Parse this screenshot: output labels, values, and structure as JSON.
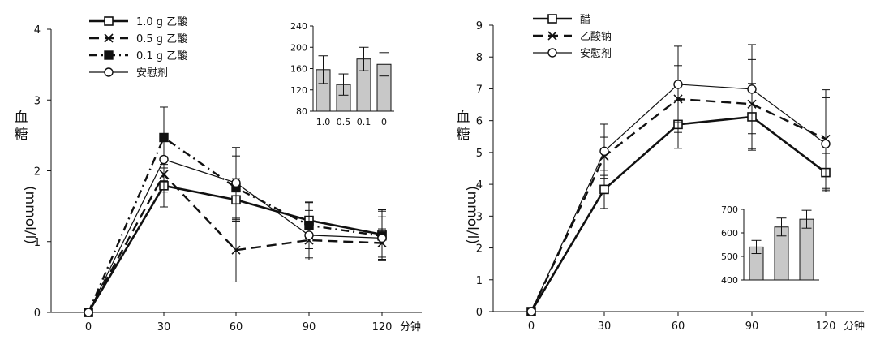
{
  "chart_data": [
    {
      "id": "left",
      "type": "line",
      "xlabel": "分钟",
      "ylabel_top": "血糖",
      "ylabel_unit": "(mmol/l)",
      "x": [
        0,
        30,
        60,
        90,
        120
      ],
      "x_tick_labels": [
        "0",
        "30",
        "60",
        "90",
        "120"
      ],
      "ylim": [
        0,
        4
      ],
      "y_ticks": [
        0,
        1,
        2,
        3,
        4
      ],
      "series": [
        {
          "name": "1.0 g  乙酸",
          "values": [
            0.0,
            1.79,
            1.59,
            1.3,
            1.1
          ],
          "errors": [
            0,
            0.3,
            0.3,
            0.25,
            0.35
          ],
          "style": "solid-bold",
          "marker": "open-square"
        },
        {
          "name": "0.5 g  乙酸",
          "values": [
            0.0,
            1.95,
            0.88,
            1.02,
            0.98
          ],
          "errors": [
            0,
            0.25,
            0.45,
            0.25,
            0.2
          ],
          "style": "long-dash",
          "marker": "x"
        },
        {
          "name": "0.1 g  乙酸",
          "values": [
            0.0,
            2.47,
            1.76,
            1.23,
            1.08
          ],
          "errors": [
            0,
            0.43,
            0.45,
            0.33,
            0.35
          ],
          "style": "dash-dot",
          "marker": "filled-square"
        },
        {
          "name": "安慰剂",
          "values": [
            0.0,
            2.16,
            1.83,
            1.09,
            1.05
          ],
          "errors": [
            0,
            0.3,
            0.5,
            0.35,
            0.3
          ],
          "style": "thin-solid",
          "marker": "open-circle"
        }
      ],
      "inset": {
        "type": "bar",
        "categories": [
          "1.0",
          "0.5",
          "0.1",
          "0"
        ],
        "values": [
          158,
          130,
          178,
          168
        ],
        "errors": [
          26,
          20,
          22,
          22
        ],
        "ylim": [
          80,
          240
        ],
        "y_ticks": [
          80,
          120,
          160,
          200,
          240
        ]
      }
    },
    {
      "id": "right",
      "type": "line",
      "xlabel": "分钟",
      "ylabel_top": "血糖",
      "ylabel_unit": "(mmol/l)",
      "x": [
        0,
        30,
        60,
        90,
        120
      ],
      "x_tick_labels": [
        "0",
        "30",
        "60",
        "90",
        "120"
      ],
      "ylim": [
        0,
        9
      ],
      "y_ticks": [
        0,
        1,
        2,
        3,
        4,
        5,
        6,
        7,
        8,
        9
      ],
      "series": [
        {
          "name": "醋",
          "values": [
            0.0,
            3.84,
            5.88,
            6.12,
            4.37
          ],
          "errors": [
            0,
            0.6,
            0.75,
            1.05,
            0.6
          ],
          "style": "solid-bold",
          "marker": "open-square"
        },
        {
          "name": "乙酸钠",
          "values": [
            0.0,
            4.88,
            6.68,
            6.52,
            5.42
          ],
          "errors": [
            0,
            0.6,
            1.05,
            1.4,
            1.55
          ],
          "style": "long-dash",
          "marker": "x"
        },
        {
          "name": "安慰剂",
          "values": [
            0.0,
            5.04,
            7.14,
            6.99,
            5.27
          ],
          "errors": [
            0,
            0.85,
            1.2,
            1.4,
            1.45
          ],
          "style": "thin-solid",
          "marker": "open-circle"
        }
      ],
      "inset": {
        "type": "bar",
        "categories": [
          "",
          "",
          ""
        ],
        "values": [
          540,
          625,
          658
        ],
        "errors": [
          28,
          38,
          38
        ],
        "ylim": [
          400,
          700
        ],
        "y_ticks": [
          400,
          500,
          600,
          700
        ]
      }
    }
  ],
  "colors": {
    "line": "#111111",
    "bar_fill": "#c8c8c8"
  }
}
